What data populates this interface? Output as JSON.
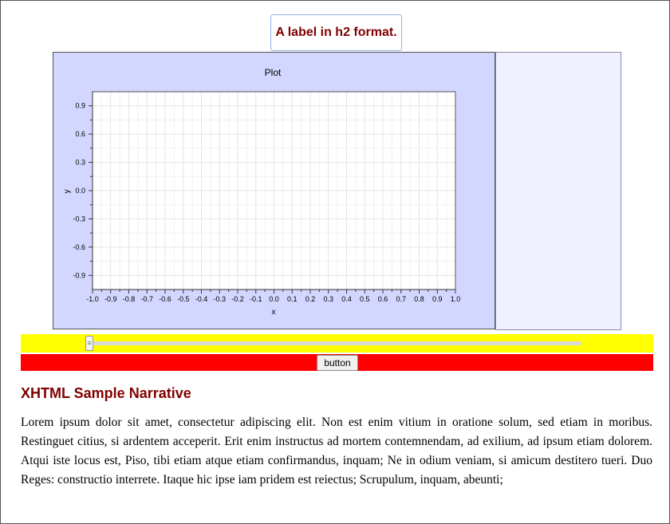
{
  "header": {
    "label": "A label in h2 format."
  },
  "chart_data": {
    "type": "line",
    "title": "Plot",
    "xlabel": "x",
    "ylabel": "y",
    "xlim": [
      -1.0,
      1.0
    ],
    "ylim": [
      -1.05,
      1.05
    ],
    "x_ticks": [
      -1.0,
      -0.9,
      -0.8,
      -0.7,
      -0.6,
      -0.5,
      -0.4,
      -0.3,
      -0.2,
      -0.1,
      0.0,
      0.1,
      0.2,
      0.3,
      0.4,
      0.5,
      0.6,
      0.7,
      0.8,
      0.9,
      1.0
    ],
    "y_ticks": [
      0.9,
      0.6,
      0.3,
      0.0,
      -0.3,
      -0.6,
      -0.9
    ],
    "x_tick_labels": [
      "-1.0",
      "-0.9",
      "-0.8",
      "-0.7",
      "-0.6",
      "-0.5",
      "-0.4",
      "-0.3",
      "-0.2",
      "-0.1",
      "0.0",
      "0.1",
      "0.2",
      "0.3",
      "0.4",
      "0.5",
      "0.6",
      "0.7",
      "0.8",
      "0.9",
      "1.0"
    ],
    "y_tick_labels": [
      "0.9",
      "0.6",
      "0.3",
      "0.0",
      "-0.3",
      "-0.6",
      "-0.9"
    ],
    "grid": true,
    "series": []
  },
  "slider": {
    "value": 0.0
  },
  "button": {
    "label": "button"
  },
  "narrative": {
    "title": "XHTML Sample Narrative",
    "body": "Lorem ipsum dolor sit amet, consectetur adipiscing elit. Non est enim vitium in oratione solum, sed etiam in moribus. Restinguet citius, si ardentem acceperit. Erit enim instructus ad mortem contemnendam, ad exilium, ad ipsum etiam dolorem. Atqui iste locus est, Piso, tibi etiam atque etiam confirmandus, inquam; Ne in odium veniam, si amicum destitero tueri. Duo Reges: constructio interrete. Itaque hic ipse iam pridem est reiectus; Scrupulum, inquam, abeunti;"
  },
  "colors": {
    "h2_text": "#800000",
    "plot_panel_bg": "#d3d7ff",
    "side_panel_bg": "#f0f0ff",
    "slider_bar_bg": "#ffff00",
    "button_bar_bg": "#ff0000",
    "grid": "#e4e4e4"
  }
}
